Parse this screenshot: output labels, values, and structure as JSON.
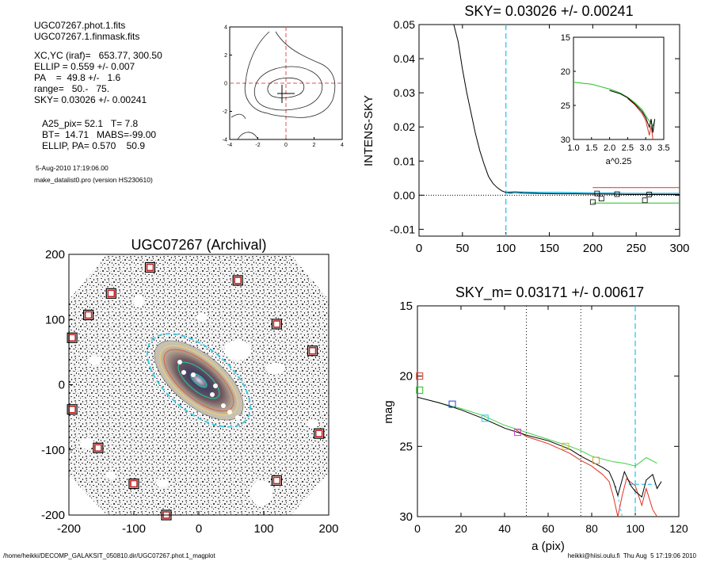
{
  "header": {
    "lines_a": [
      "UGC07267.phot.1.fits",
      "UGC07267.1.finmask.fits"
    ],
    "lines_b": [
      "XC,YC (iraf)=   653.77, 300.50",
      "ELLIP = 0.559 +/- 0.007",
      "PA    =  49.8 +/-   1.6",
      "range=   50.-   75.",
      "SKY= 0.03026 +/- 0.00241"
    ],
    "lines_c": [
      "A25_pix= 52.1   T= 7.8",
      "BT=  14.71   MABS=-99.00",
      "ELLIP, PA= 0.570    50.9"
    ],
    "date": "5-Aug-2010 17:19:06.00",
    "program": "make_datalist0.pro (version HS230610)"
  },
  "footer": {
    "path": "/home/heikki/DECOMP_GALAKSIT_050810.dir/UGC07267.phot.1_magplot",
    "user_time": "heikki@hiisi.oulu.fi  Thu Aug  5 17:19:06 2010"
  },
  "chart_data": [
    {
      "type": "contour",
      "x_ticks": [
        "-4",
        "-2",
        "0",
        "2",
        "4"
      ],
      "y_ticks": [
        "-4",
        "-2",
        "0",
        "2",
        "4"
      ],
      "xlim": [
        -4,
        4
      ],
      "ylim": [
        -4,
        4
      ]
    },
    {
      "type": "line",
      "title": "SKY= 0.03026 +/- 0.00241",
      "xlabel": "",
      "ylabel": "INTENS-SKY",
      "xlim": [
        0,
        300
      ],
      "ylim": [
        -0.012,
        0.05
      ],
      "x_ticks": [
        "0",
        "50",
        "100",
        "150",
        "200",
        "250",
        "300"
      ],
      "y_ticks": [
        "-0.01",
        "0.00",
        "0.01",
        "0.02",
        "0.03",
        "0.04",
        "0.05"
      ],
      "series": [
        {
          "color": "#000000",
          "x": [
            40,
            45,
            50,
            55,
            60,
            65,
            70,
            75,
            80,
            85,
            90,
            95,
            100,
            105,
            110,
            115,
            120,
            140,
            160,
            180,
            200,
            220,
            240,
            260,
            280,
            300
          ],
          "y": [
            0.05,
            0.045,
            0.037,
            0.03,
            0.024,
            0.018,
            0.013,
            0.009,
            0.0055,
            0.0035,
            0.0022,
            0.0013,
            0.0008,
            0.0006,
            0.0008,
            0.0007,
            0.0006,
            0.0005,
            0.0004,
            0.0004,
            0.0003,
            0.0003,
            0.0002,
            0.0002,
            0.0002,
            0.0002
          ]
        },
        {
          "color": "#00aadd",
          "x": [
            100,
            110,
            120,
            140,
            160,
            180,
            200,
            220,
            240,
            260,
            280,
            300
          ],
          "y": [
            0.0009,
            0.001,
            0.0009,
            0.0008,
            0.0008,
            0.0007,
            0.0006,
            0.0006,
            0.0005,
            0.0005,
            0.0005,
            0.0005
          ]
        },
        {
          "color": "#e03020",
          "x": [
            200,
            300
          ],
          "y": [
            0.0022,
            0.0022
          ]
        },
        {
          "color": "#20c020",
          "x": [
            200,
            300
          ],
          "y": [
            -0.0023,
            -0.0023
          ]
        }
      ],
      "markers": {
        "x": [
          200,
          205,
          210,
          228,
          260,
          265
        ],
        "y": [
          -0.002,
          0.0005,
          -0.001,
          0.0003,
          -0.0015,
          0.0002
        ]
      },
      "vline_cyan": 100,
      "inset": {
        "xlabel": "a^0.25",
        "xlim": [
          1.0,
          3.5
        ],
        "ylim": [
          15,
          30
        ],
        "x_ticks": [
          "1.0",
          "1.5",
          "2.0",
          "2.5",
          "3.0",
          "3.5"
        ],
        "y_ticks": [
          "15",
          "20",
          "25",
          "30"
        ],
        "green": {
          "x": [
            1.0,
            1.5,
            2.0,
            2.3,
            2.5,
            2.7,
            2.9,
            3.0,
            3.1,
            3.2,
            3.25
          ],
          "y": [
            21.6,
            21.9,
            22.6,
            23.2,
            23.8,
            24.6,
            25.6,
            26.5,
            27.3,
            28.0,
            27.2
          ]
        },
        "black": {
          "x": [
            2.0,
            2.3,
            2.5,
            2.7,
            2.9,
            3.0,
            3.1,
            3.15,
            3.2,
            3.25
          ],
          "y": [
            22.8,
            23.3,
            23.9,
            24.8,
            25.9,
            26.8,
            28.2,
            27.0,
            29.0,
            27.0
          ]
        },
        "red": {
          "x": [
            2.5,
            2.7,
            2.9,
            3.0,
            3.1,
            3.15,
            3.2
          ],
          "y": [
            24.0,
            24.9,
            26.2,
            27.2,
            29.4,
            28.0,
            30.0
          ]
        }
      }
    },
    {
      "type": "image",
      "title": "UGC07267 (Archival)",
      "xlim": [
        -200,
        200
      ],
      "ylim": [
        -200,
        200
      ],
      "x_ticks": [
        "-200",
        "-100",
        "0",
        "100",
        "200"
      ],
      "y_ticks": [
        "-200",
        "-100",
        "0",
        "100",
        "200"
      ],
      "boxes": [
        [
          -75,
          180
        ],
        [
          60,
          160
        ],
        [
          -135,
          140
        ],
        [
          -170,
          107
        ],
        [
          120,
          93
        ],
        [
          -195,
          72
        ],
        [
          175,
          52
        ],
        [
          -195,
          -38
        ],
        [
          185,
          -75
        ],
        [
          -155,
          -97
        ],
        [
          -100,
          -152
        ],
        [
          120,
          -147
        ],
        [
          -50,
          -200
        ]
      ]
    },
    {
      "type": "line",
      "title": "SKY_m=  0.03171 +/- 0.00617",
      "xlabel": "a (pix)",
      "ylabel": "mag",
      "xlim": [
        0,
        120
      ],
      "ylim": [
        30,
        15
      ],
      "x_ticks": [
        "0",
        "20",
        "40",
        "60",
        "80",
        "100",
        "120"
      ],
      "y_ticks": [
        "15",
        "20",
        "25",
        "30"
      ],
      "vlines_dotted": [
        50,
        75
      ],
      "vline_cyan": 100,
      "green": {
        "x": [
          0,
          10,
          20,
          30,
          40,
          50,
          60,
          70,
          75,
          80,
          85,
          90,
          95,
          100,
          105,
          110
        ],
        "y": [
          21.5,
          21.9,
          22.3,
          22.8,
          23.5,
          24.0,
          24.5,
          25.0,
          25.3,
          25.7,
          25.9,
          26.1,
          26.2,
          26.4,
          25.8,
          26.2
        ]
      },
      "black": {
        "x": [
          0,
          10,
          20,
          30,
          40,
          50,
          60,
          70,
          75,
          80,
          85,
          88,
          90,
          92,
          95,
          98,
          100,
          103,
          105,
          108,
          110,
          112
        ],
        "y": [
          21.5,
          21.9,
          22.4,
          23.0,
          23.7,
          24.2,
          24.6,
          25.2,
          25.7,
          26.1,
          26.5,
          26.8,
          27.5,
          28.5,
          26.8,
          27.8,
          28.2,
          28.6,
          27.4,
          27.0,
          28.0,
          27.5
        ]
      },
      "red": {
        "x": [
          45,
          50,
          60,
          70,
          75,
          80,
          85,
          88,
          90,
          92,
          94,
          96,
          100,
          103,
          105,
          108,
          110
        ],
        "y": [
          23.8,
          24.3,
          24.8,
          25.5,
          26.0,
          26.4,
          27.0,
          27.5,
          28.6,
          30.0,
          28.5,
          27.3,
          27.8,
          29.2,
          28.0,
          29.5,
          30.0
        ]
      },
      "markers": [
        {
          "x": 1,
          "y": 20.0,
          "color": "#e03020"
        },
        {
          "x": 1,
          "y": 21.0,
          "color": "#20c020"
        },
        {
          "x": 16,
          "y": 22.0,
          "color": "#2040e0"
        },
        {
          "x": 31,
          "y": 23.0,
          "color": "#20d0e0"
        },
        {
          "x": 46,
          "y": 24.0,
          "color": "#d040d0"
        },
        {
          "x": 68,
          "y": 25.0,
          "color": "#d0c020"
        },
        {
          "x": 82,
          "y": 26.0,
          "color": "#e0a040"
        }
      ]
    }
  ]
}
